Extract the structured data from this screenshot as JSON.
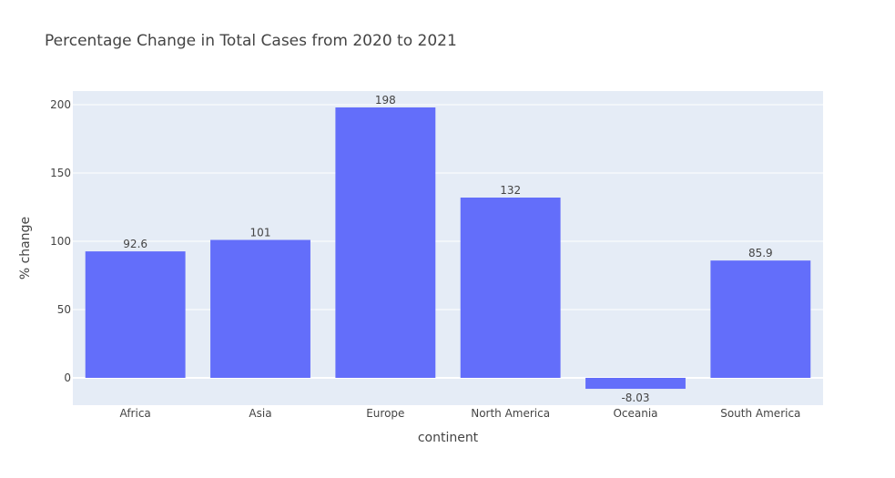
{
  "colors": {
    "plot_background": "#e5ecf6",
    "grid": "#ffffff",
    "bar": "#636efa",
    "text": "#444444"
  },
  "chart_data": {
    "type": "bar",
    "title": "Percentage Change in Total Cases from 2020 to 2021",
    "xlabel": "continent",
    "ylabel": "% change",
    "categories": [
      "Africa",
      "Asia",
      "Europe",
      "North America",
      "Oceania",
      "South America"
    ],
    "values": [
      92.6,
      101,
      198,
      132,
      -8.03,
      85.9
    ],
    "value_labels": [
      "92.6",
      "101",
      "198",
      "132",
      "-8.03",
      "85.9"
    ],
    "ylim": [
      -20,
      210
    ],
    "yticks": [
      0,
      50,
      100,
      150,
      200
    ],
    "ytick_labels": [
      "0",
      "50",
      "100",
      "150",
      "200"
    ],
    "grid": true,
    "legend": false
  }
}
